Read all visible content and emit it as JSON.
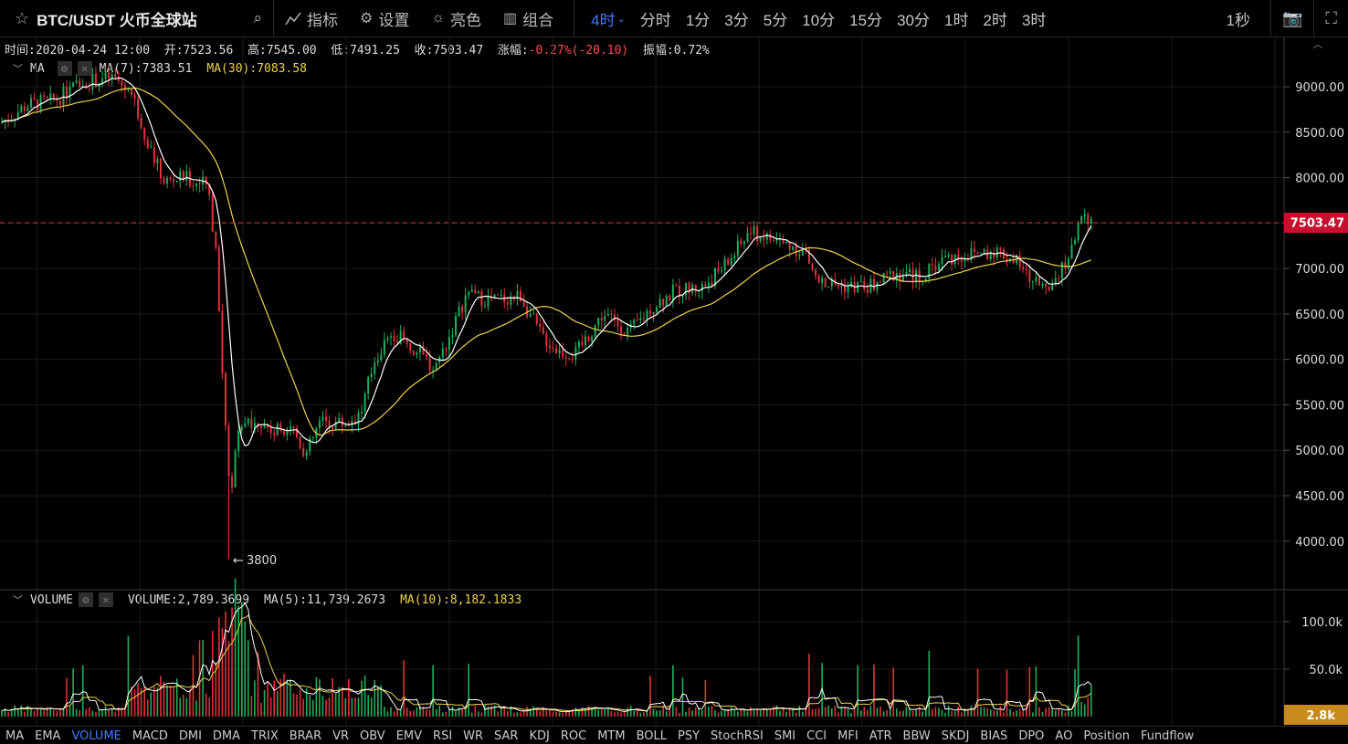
{
  "header": {
    "symbol": "BTC/USDT 火币全球站",
    "tools": [
      {
        "icon": "indicator-icon",
        "label": "指标"
      },
      {
        "icon": "gear-icon",
        "label": "设置"
      },
      {
        "icon": "sun-icon",
        "label": "亮色"
      },
      {
        "icon": "layout-icon",
        "label": "组合"
      }
    ],
    "intervals": [
      "4时",
      "分时",
      "1分",
      "3分",
      "5分",
      "10分",
      "15分",
      "30分",
      "1时",
      "2时",
      "3时"
    ],
    "active_interval": "4时",
    "refresh": "1秒"
  },
  "ohlc_info": {
    "time": "时间:2020-04-24 12:00",
    "open": "开:7523.56",
    "high": "高:7545.00",
    "low": "低:7491.25",
    "close": "收:7503.47",
    "change_label": "涨幅:",
    "change": "-0.27%(-20.10)",
    "amplitude": "振幅:0.72%"
  },
  "ma_legend": {
    "name": "MA",
    "ma7": "MA(7):7383.51",
    "ma30": "MA(30):7083.58"
  },
  "volume_legend": {
    "name": "VOLUME",
    "volume": "VOLUME:2,789.3699",
    "ma5": "MA(5):11,739.2673",
    "ma10": "MA(10):8,182.1833"
  },
  "price_axis": [
    "9000.00",
    "8500.00",
    "8000.00",
    "7500.00",
    "7000.00",
    "6500.00",
    "6000.00",
    "5500.00",
    "5000.00",
    "4500.00",
    "4000.00"
  ],
  "current_price": "7503.47",
  "low_marker": "3800",
  "volume_axis": [
    "100.0k",
    "50.0k"
  ],
  "current_volume": "2.8k",
  "indicators": [
    "MA",
    "EMA",
    "VOLUME",
    "MACD",
    "DMI",
    "DMA",
    "TRIX",
    "BRAR",
    "VR",
    "OBV",
    "EMV",
    "RSI",
    "WR",
    "SAR",
    "KDJ",
    "ROC",
    "MTM",
    "BOLL",
    "PSY",
    "StochRSI",
    "SMI",
    "CCI",
    "MFI",
    "ATR",
    "BBW",
    "SKDJ",
    "BIAS",
    "DPO",
    "AO",
    "Position",
    "Fundflow"
  ],
  "active_indicator": "VOLUME",
  "colors": {
    "up": "#1fae5a",
    "down": "#e0323a",
    "ma7": "#ffffff",
    "ma30": "#f0d34a",
    "accent": "#3d7cff",
    "price_tag": "#c8102e",
    "vol_tag": "#c88a1e"
  }
}
